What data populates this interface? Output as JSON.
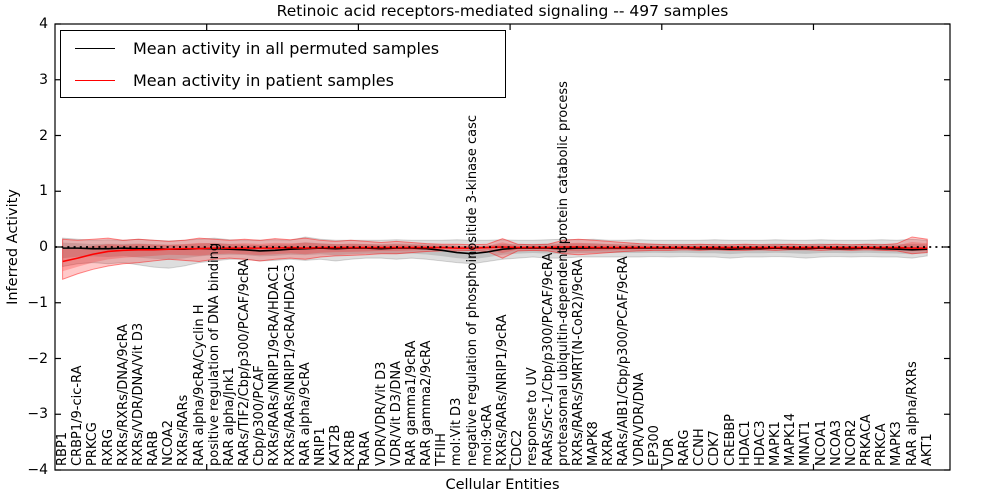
{
  "chart_data": {
    "type": "line",
    "title": "Retinoic acid receptors-mediated signaling -- 497 samples",
    "xlabel": "Cellular Entities",
    "ylabel": "Inferred Activity",
    "ylim": [
      -4,
      4
    ],
    "x_extent": 59,
    "grid": false,
    "legend_position": "upper left",
    "zero_line": {
      "y": 0,
      "style": "dotted",
      "color": "#000000"
    },
    "yticks": {
      "values": [
        4,
        3,
        2,
        1,
        0,
        -1,
        -2,
        -3,
        -4
      ],
      "labels": [
        "4",
        "3",
        "2",
        "1",
        "0",
        "−1",
        "−2",
        "−3",
        "−4"
      ]
    },
    "xticks": {
      "values": [
        10,
        20,
        30,
        40,
        50
      ]
    },
    "categories": [
      "RBP1",
      "CRBP1/9-cic-RA",
      "PRKCG",
      "RXRG",
      "RXRs/RXRs/DNA/9cRA",
      "RXRs/VDR/DNA/Vit D3",
      "RARB",
      "NCOA2",
      "RXRs/RARs",
      "RAR alpha/9cRA/Cyclin H",
      "positive regulation of DNA binding",
      "RAR alpha/Jnk1",
      "RARs/TIF2/Cbp/p300/PCAF/9cRA",
      "Cbp/p300/PCAF",
      "RXRs/RARs/NRIP1/9cRA/HDAC1",
      "RXRs/RARs/NRIP1/9cRA/HDAC3",
      "RAR alpha/9cRA",
      "NRIP1",
      "KAT2B",
      "RXRB",
      "RARA",
      "VDR/VDR/Vit D3",
      "VDR/Vit D3/DNA",
      "RAR gamma1/9cRA",
      "RAR gamma2/9cRA",
      "TFIIH",
      "mol:Vit D3",
      "negative regulation of phosphoinositide 3-kinase casc",
      "mol:9cRA",
      "RXRs/RARs/NRIP1/9cRA",
      "CDC2",
      "response to UV",
      "RARs/Src-1/Cbp/p300/PCAF/9cRA",
      "proteasomal ubiquitin-dependent protein catabolic process",
      "RXRs/RARs/SMRT(N-CoR2)/9cRA",
      "MAPK8",
      "RXRA",
      "RARs/AIB1/Cbp/p300/PCAF/9cRA",
      "VDR/VDR/DNA",
      "EP300",
      "VDR",
      "RARG",
      "CCNH",
      "CDK7",
      "CREBBP",
      "HDAC1",
      "HDAC3",
      "MAPK1",
      "MAPK14",
      "MNAT1",
      "NCOA1",
      "NCOA3",
      "NCOR2",
      "PRKACA",
      "PRKCA",
      "MAPK3",
      "RAR alpha/RXRs",
      "AKT1"
    ],
    "series": [
      {
        "name": "Mean activity in all permuted samples",
        "color": "#000000",
        "band_color": "#000000",
        "values": [
          -0.02,
          -0.02,
          -0.03,
          -0.03,
          -0.02,
          -0.03,
          -0.03,
          -0.04,
          -0.04,
          -0.03,
          -0.03,
          -0.04,
          -0.05,
          -0.07,
          -0.06,
          -0.04,
          -0.03,
          -0.02,
          -0.03,
          -0.02,
          -0.02,
          -0.03,
          -0.02,
          -0.02,
          -0.03,
          -0.06,
          -0.1,
          -0.12,
          -0.09,
          -0.04,
          -0.02,
          -0.02,
          -0.02,
          -0.03,
          -0.02,
          -0.02,
          -0.02,
          -0.02,
          -0.02,
          -0.02,
          -0.02,
          -0.02,
          -0.03,
          -0.03,
          -0.04,
          -0.03,
          -0.03,
          -0.02,
          -0.03,
          -0.03,
          -0.02,
          -0.03,
          -0.03,
          -0.02,
          -0.03,
          -0.04,
          -0.05,
          -0.04
        ],
        "band_upper": [
          0.16,
          0.14,
          0.12,
          0.13,
          0.12,
          0.14,
          0.12,
          0.11,
          0.12,
          0.14,
          0.16,
          0.13,
          0.12,
          0.12,
          0.13,
          0.12,
          0.18,
          0.14,
          0.12,
          0.12,
          0.12,
          0.12,
          0.13,
          0.12,
          0.12,
          0.12,
          0.13,
          0.12,
          0.12,
          0.13,
          0.12,
          0.12,
          0.13,
          0.14,
          0.13,
          0.14,
          0.12,
          0.12,
          0.13,
          0.12,
          0.12,
          0.12,
          0.12,
          0.13,
          0.12,
          0.12,
          0.12,
          0.13,
          0.12,
          0.12,
          0.13,
          0.12,
          0.12,
          0.12,
          0.13,
          0.12,
          0.14,
          0.12
        ],
        "band_lower": [
          -0.35,
          -0.3,
          -0.28,
          -0.3,
          -0.28,
          -0.32,
          -0.36,
          -0.38,
          -0.34,
          -0.28,
          -0.25,
          -0.22,
          -0.22,
          -0.25,
          -0.24,
          -0.22,
          -0.24,
          -0.22,
          -0.25,
          -0.22,
          -0.2,
          -0.2,
          -0.22,
          -0.2,
          -0.22,
          -0.25,
          -0.28,
          -0.3,
          -0.26,
          -0.22,
          -0.2,
          -0.18,
          -0.2,
          -0.2,
          -0.18,
          -0.18,
          -0.18,
          -0.18,
          -0.18,
          -0.17,
          -0.18,
          -0.17,
          -0.18,
          -0.18,
          -0.2,
          -0.18,
          -0.18,
          -0.17,
          -0.18,
          -0.2,
          -0.18,
          -0.17,
          -0.18,
          -0.17,
          -0.18,
          -0.18,
          -0.2,
          -0.16
        ]
      },
      {
        "name": "Mean activity in patient samples",
        "color": "#ff0000",
        "band_color": "#ff0000",
        "values": [
          -0.26,
          -0.2,
          -0.13,
          -0.08,
          -0.06,
          -0.05,
          -0.05,
          -0.04,
          -0.03,
          -0.03,
          -0.02,
          -0.02,
          -0.02,
          -0.02,
          -0.02,
          -0.01,
          -0.02,
          -0.01,
          -0.01,
          -0.01,
          -0.01,
          -0.01,
          -0.01,
          -0.01,
          -0.01,
          -0.01,
          -0.02,
          -0.02,
          -0.01,
          0.0,
          -0.01,
          -0.01,
          -0.01,
          0.0,
          0.0,
          -0.01,
          -0.01,
          -0.01,
          -0.01,
          -0.01,
          -0.01,
          -0.01,
          -0.01,
          -0.01,
          -0.01,
          -0.01,
          -0.01,
          -0.01,
          -0.01,
          -0.01,
          -0.01,
          -0.01,
          -0.01,
          -0.01,
          -0.01,
          -0.01,
          -0.02,
          -0.02
        ],
        "band_upper": [
          0.14,
          0.12,
          0.14,
          0.16,
          0.12,
          0.14,
          0.12,
          0.1,
          0.12,
          0.16,
          0.14,
          0.12,
          0.14,
          0.12,
          0.15,
          0.13,
          0.16,
          0.12,
          0.1,
          0.12,
          0.1,
          0.08,
          0.1,
          0.08,
          0.06,
          0.05,
          0.05,
          0.04,
          0.05,
          0.15,
          0.05,
          0.04,
          0.05,
          0.12,
          0.14,
          0.12,
          0.1,
          0.08,
          0.06,
          0.05,
          0.04,
          0.04,
          0.05,
          0.04,
          0.04,
          0.05,
          0.04,
          0.04,
          0.05,
          0.04,
          0.04,
          0.05,
          0.04,
          0.05,
          0.04,
          0.06,
          0.18,
          0.14
        ],
        "band_lower": [
          -0.58,
          -0.48,
          -0.4,
          -0.34,
          -0.3,
          -0.28,
          -0.25,
          -0.22,
          -0.24,
          -0.26,
          -0.22,
          -0.2,
          -0.22,
          -0.25,
          -0.22,
          -0.2,
          -0.22,
          -0.18,
          -0.16,
          -0.15,
          -0.14,
          -0.12,
          -0.12,
          -0.1,
          -0.08,
          -0.07,
          -0.07,
          -0.06,
          -0.08,
          -0.2,
          -0.07,
          -0.06,
          -0.07,
          -0.12,
          -0.14,
          -0.12,
          -0.1,
          -0.08,
          -0.07,
          -0.06,
          -0.06,
          -0.05,
          -0.06,
          -0.05,
          -0.06,
          -0.06,
          -0.05,
          -0.06,
          -0.05,
          -0.05,
          -0.06,
          -0.05,
          -0.06,
          -0.05,
          -0.06,
          -0.07,
          -0.12,
          -0.1
        ]
      }
    ]
  },
  "legend": {
    "entries": [
      {
        "label": "Mean activity in all permuted samples",
        "color": "#000000"
      },
      {
        "label": "Mean activity in patient samples",
        "color": "#ff0000"
      }
    ]
  }
}
